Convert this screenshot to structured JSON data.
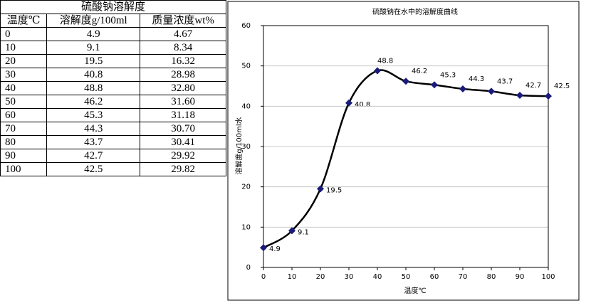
{
  "table": {
    "title": "硫酸钠溶解度",
    "headers": [
      "温度℃",
      "溶解度g/100ml",
      "质量浓度wt%"
    ],
    "rows": [
      [
        "0",
        "4.9",
        "4.67"
      ],
      [
        "10",
        "9.1",
        "8.34"
      ],
      [
        "20",
        "19.5",
        "16.32"
      ],
      [
        "30",
        "40.8",
        "28.98"
      ],
      [
        "40",
        "48.8",
        "32.80"
      ],
      [
        "50",
        "46.2",
        "31.60"
      ],
      [
        "60",
        "45.3",
        "31.18"
      ],
      [
        "70",
        "44.3",
        "30.70"
      ],
      [
        "80",
        "43.7",
        "30.41"
      ],
      [
        "90",
        "42.7",
        "29.92"
      ],
      [
        "100",
        "42.5",
        "29.82"
      ]
    ]
  },
  "chart_data": {
    "type": "line",
    "title": "硫酸钠在水中的溶解度曲线",
    "x_label": "温度℃",
    "y_label": "溶解度g/100ml水",
    "x": [
      0,
      10,
      20,
      30,
      40,
      50,
      60,
      70,
      80,
      90,
      100
    ],
    "values": [
      4.9,
      9.1,
      19.5,
      40.8,
      48.8,
      46.2,
      45.3,
      44.3,
      43.7,
      42.7,
      42.5
    ],
    "color": "#000000",
    "marker_color": "#1a1a7a",
    "xlim": [
      0,
      100
    ],
    "xticks": [
      0,
      10,
      20,
      30,
      40,
      50,
      60,
      70,
      80,
      90,
      100
    ],
    "ylim": [
      0,
      60
    ],
    "yticks": [
      0,
      10,
      20,
      30,
      40,
      50,
      60
    ],
    "grid": true
  }
}
